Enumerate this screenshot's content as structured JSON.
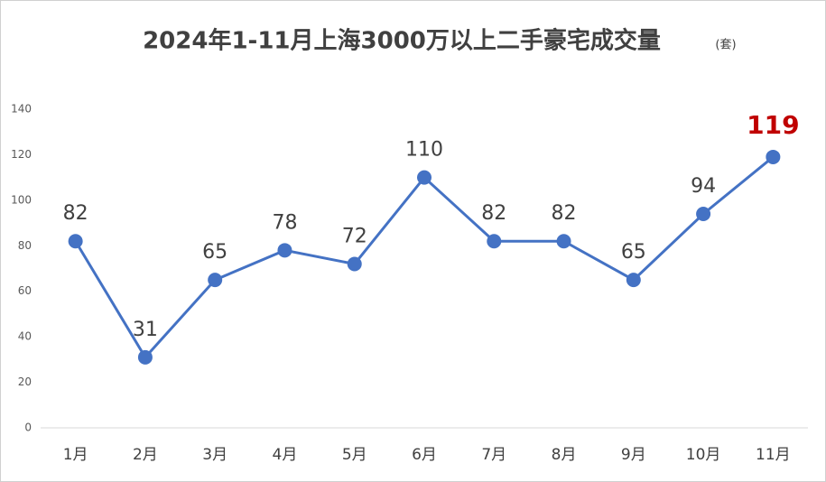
{
  "chart_data": {
    "type": "line",
    "title": "2024年1-11月上海3000万以上二手豪宅成交量",
    "title_unit": "(套)",
    "categories": [
      "1月",
      "2月",
      "3月",
      "4月",
      "5月",
      "6月",
      "7月",
      "8月",
      "9月",
      "10月",
      "11月"
    ],
    "series": [
      {
        "color": "#4472c4",
        "values": [
          82,
          31,
          65,
          78,
          72,
          110,
          82,
          82,
          65,
          94,
          119
        ]
      }
    ],
    "ylim": [
      0,
      140
    ],
    "yticks": [
      0,
      20,
      40,
      60,
      80,
      100,
      120,
      140
    ],
    "grid": false,
    "highlight": {
      "index": 10,
      "color": "#c00000"
    }
  }
}
